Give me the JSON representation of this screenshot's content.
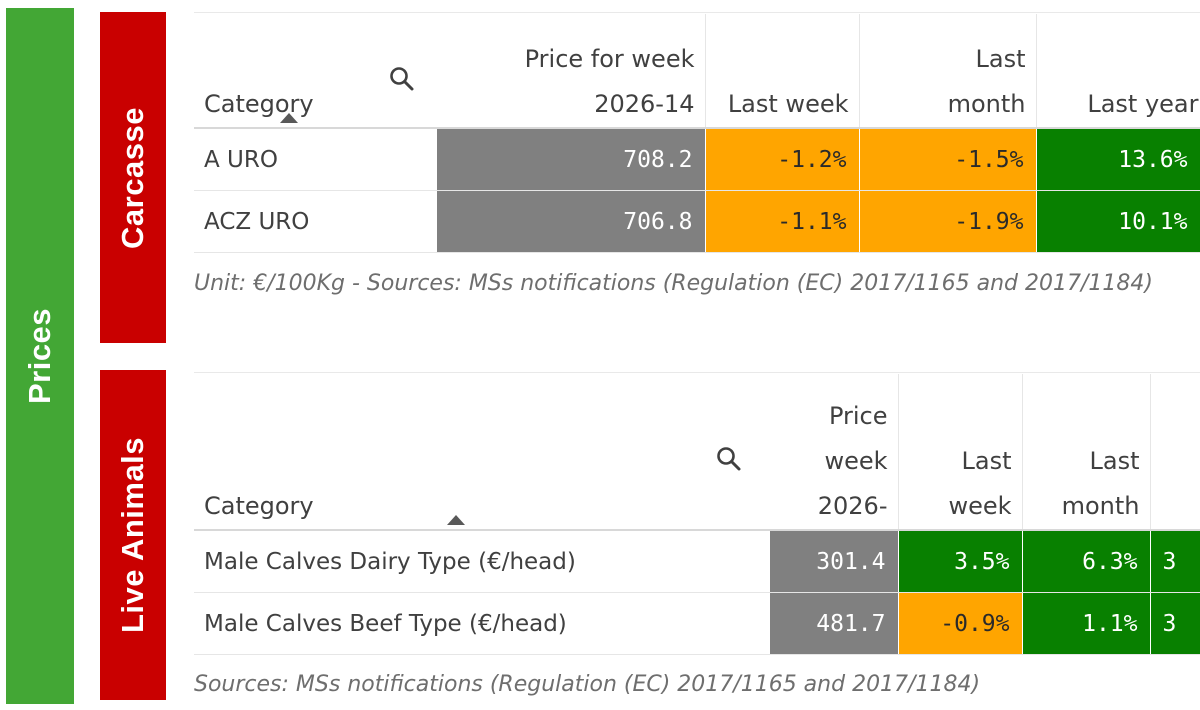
{
  "sidebar": {
    "prices_label": "Prices",
    "carcasse_label": "Carcasse",
    "live_label": "Live Animals",
    "colors": {
      "prices": "#43a735",
      "section": "#c90000"
    }
  },
  "carcasse_table": {
    "headers": {
      "category": "Category",
      "price": "Price for week 2026-14",
      "last_week": "Last week",
      "last_month": "Last month",
      "last_year": "Last year"
    },
    "rows": [
      {
        "category": "A URO",
        "price": "708.2",
        "last_week": "-1.2%",
        "last_month": "-1.5%",
        "last_year": "13.6%"
      },
      {
        "category": "ACZ URO",
        "price": "706.8",
        "last_week": "-1.1%",
        "last_month": "-1.9%",
        "last_year": "10.1%"
      }
    ],
    "note": "Unit: €/100Kg - Sources: MSs notifications (Regulation (EC) 2017/1165 and 2017/1184)"
  },
  "live_table": {
    "headers": {
      "category": "Category",
      "price": "Price week 2026-",
      "last_week": "Last week",
      "last_month": "Last month"
    },
    "rows": [
      {
        "category": "Male Calves Dairy Type (€/head)",
        "price": "301.4",
        "last_week": "3.5%",
        "last_month": "6.3%",
        "last_year": "3"
      },
      {
        "category": "Male Calves Beef Type (€/head)",
        "price": "481.7",
        "last_week": "-0.9%",
        "last_month": "1.1%",
        "last_year": "3"
      }
    ],
    "note": "Sources: MSs notifications (Regulation (EC) 2017/1165 and 2017/1184)"
  },
  "cell_colors": {
    "price": "#808080",
    "decrease": "#ffa500",
    "increase": "#088000"
  }
}
